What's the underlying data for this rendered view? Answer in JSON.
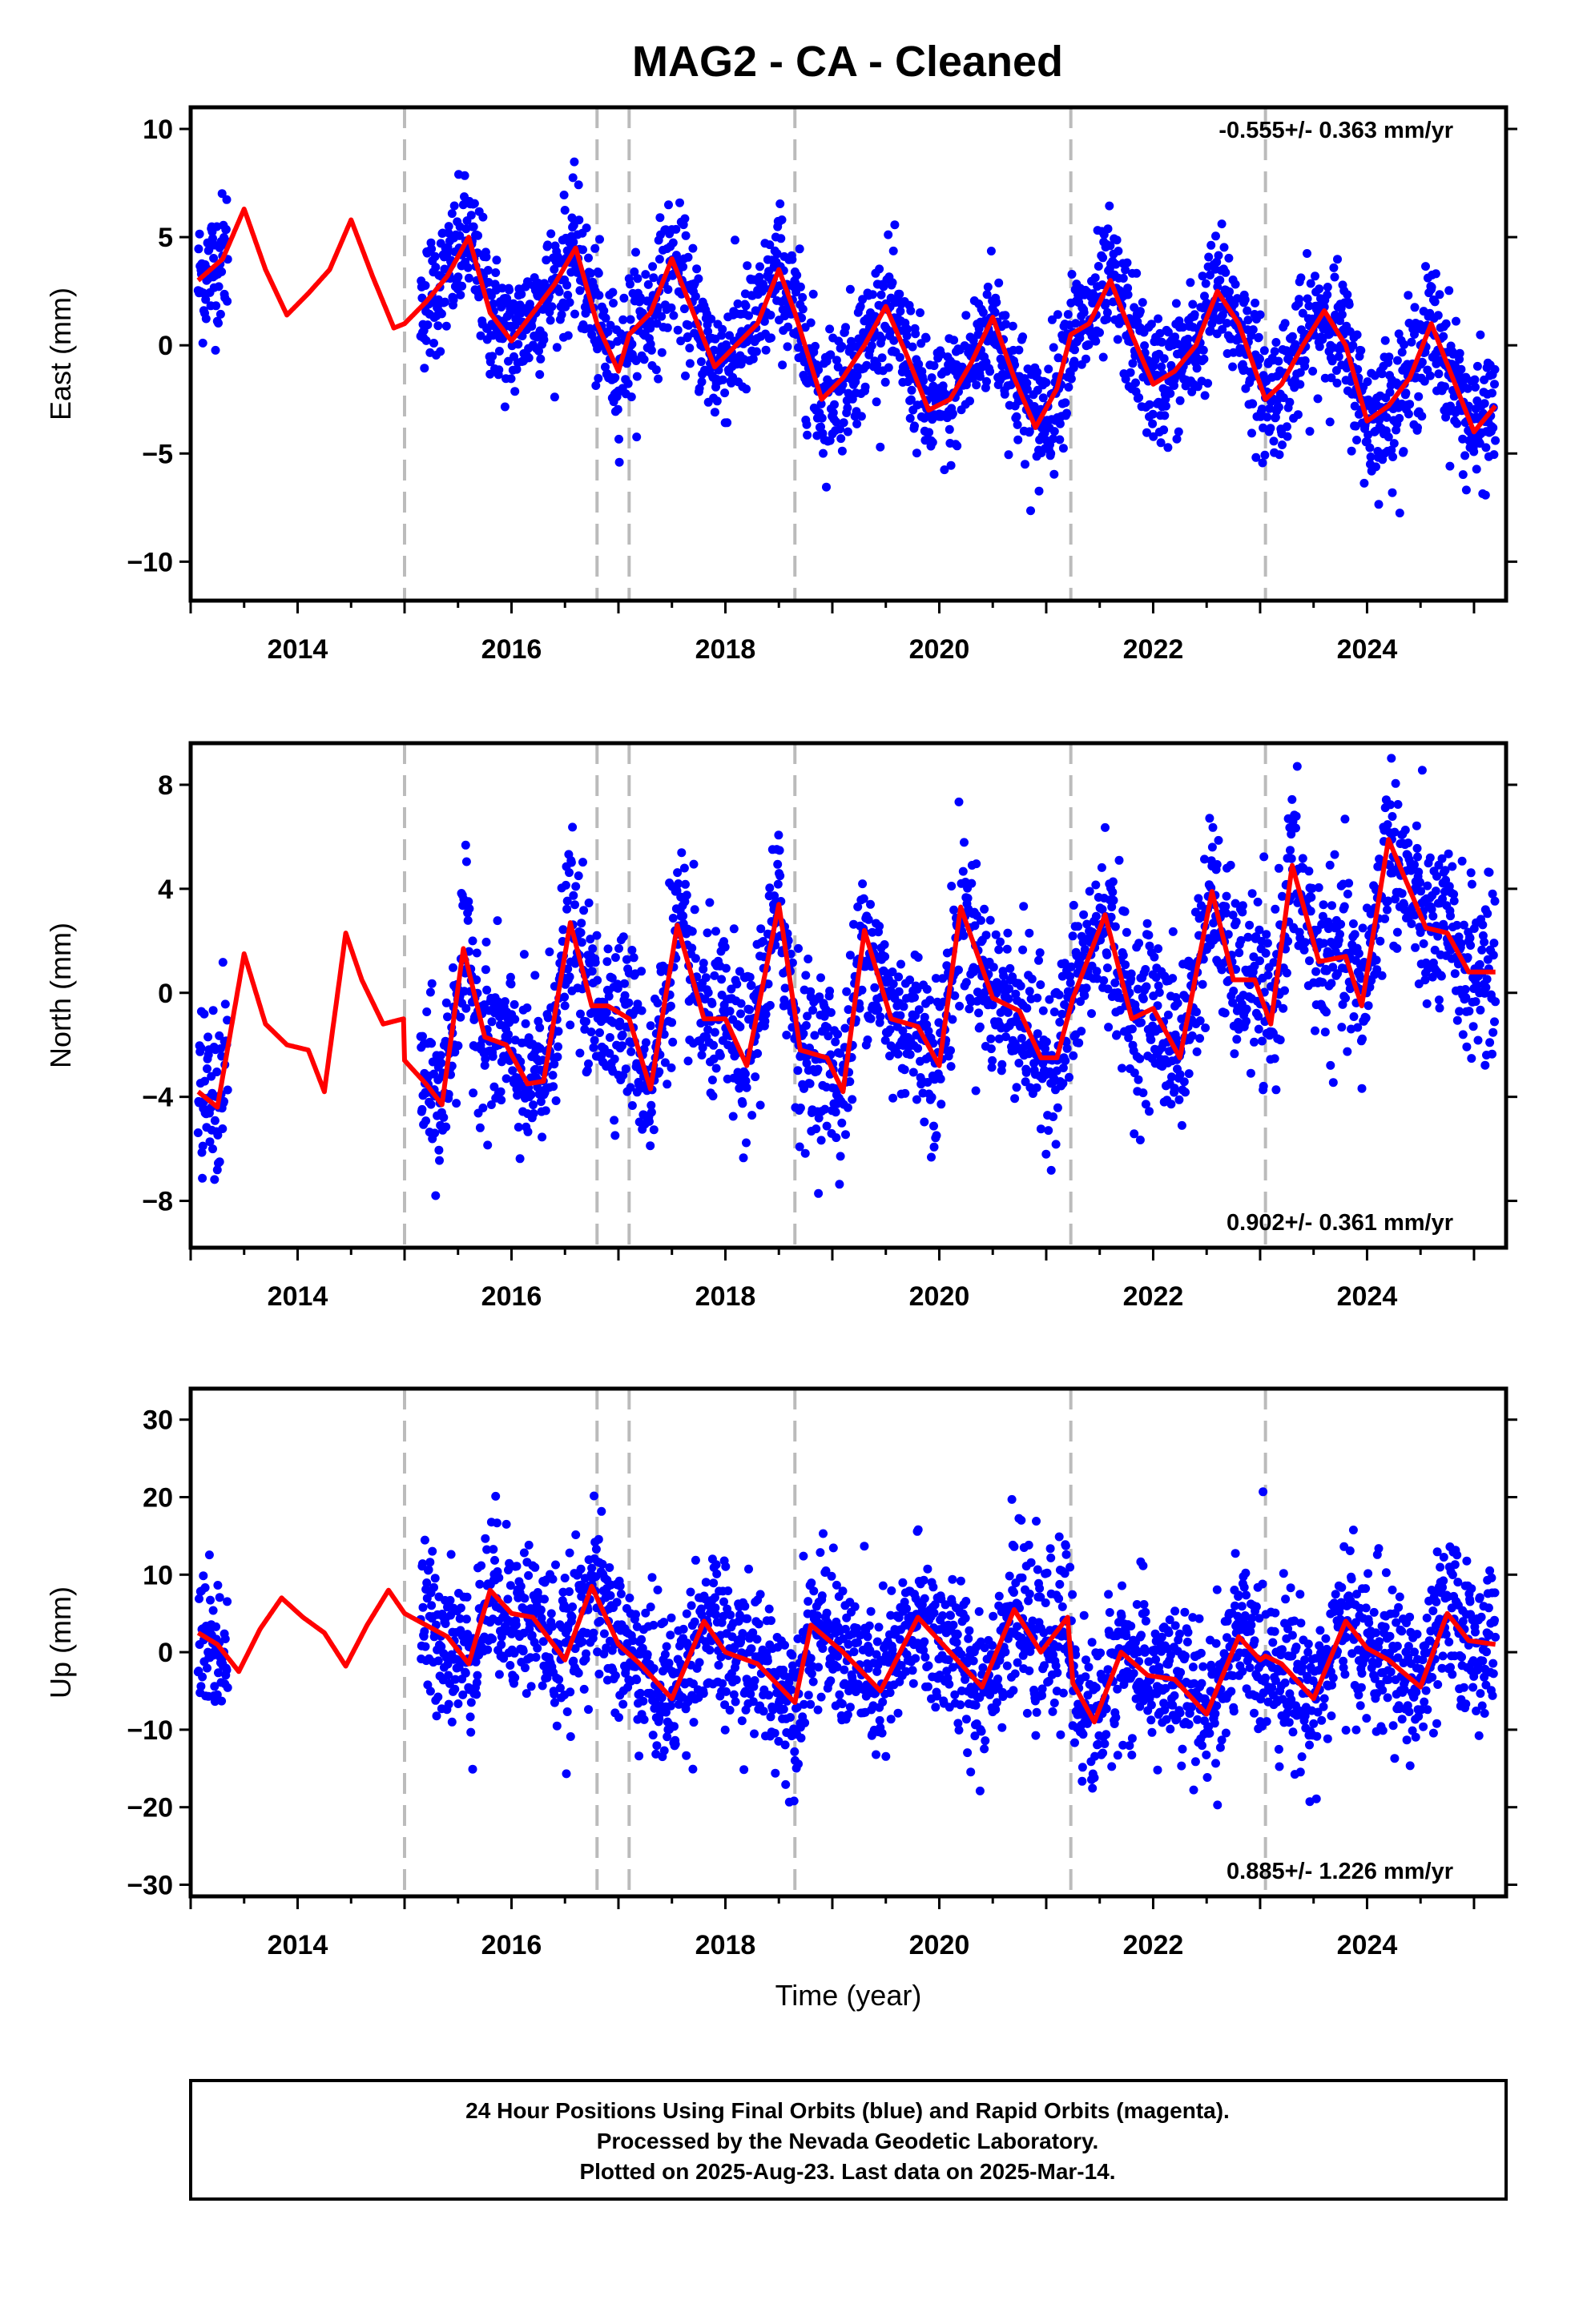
{
  "title": "MAG2  - CA - Cleaned",
  "footer": {
    "lines": [
      "24 Hour Positions Using Final Orbits (blue) and Rapid Orbits (magenta).",
      "Processed by the Nevada Geodetic Laboratory.",
      "Plotted on 2025-Aug-23. Last data on 2025-Mar-14."
    ]
  },
  "colors": {
    "final_orbits": "#0000ff",
    "model_fit": "#ff0000",
    "step_lines": "#bbbbbb"
  },
  "chart_data": [
    {
      "type": "scatter",
      "component": "east",
      "ylabel": "East (mm)",
      "xlabel": "",
      "xlim": [
        2013.0,
        2025.3
      ],
      "ylim": [
        -11.8,
        11
      ],
      "yticks": [
        10,
        5,
        0,
        -5,
        -10
      ],
      "ytick_labels": [
        "10",
        "5",
        "0",
        "−5",
        "−10"
      ],
      "xticks": [
        2014,
        2016,
        2018,
        2020,
        2022,
        2024
      ],
      "rate_label": "-0.555+/- 0.363 mm/yr",
      "rate_position": "top-right",
      "grid": false,
      "step_epochs": [
        2015.0,
        2016.8,
        2017.1,
        2018.65,
        2021.23,
        2023.05
      ],
      "data_span": [
        2013.07,
        2025.2
      ],
      "data_gap": [
        2013.35,
        2015.15
      ],
      "fit": {
        "x": [
          2013.07,
          2013.3,
          2013.5,
          2013.7,
          2013.9,
          2014.1,
          2014.3,
          2014.5,
          2014.7,
          2014.9,
          2015.0,
          2015.2,
          2015.4,
          2015.6,
          2015.8,
          2016.0,
          2016.2,
          2016.4,
          2016.6,
          2016.8,
          2017.0,
          2017.1,
          2017.3,
          2017.5,
          2017.7,
          2017.9,
          2018.1,
          2018.3,
          2018.5,
          2018.65,
          2018.9,
          2019.1,
          2019.3,
          2019.5,
          2019.7,
          2019.9,
          2020.1,
          2020.3,
          2020.5,
          2020.7,
          2020.9,
          2021.1,
          2021.23,
          2021.4,
          2021.6,
          2021.8,
          2022.0,
          2022.2,
          2022.4,
          2022.6,
          2022.8,
          2023.05,
          2023.2,
          2023.4,
          2023.6,
          2023.8,
          2024.0,
          2024.2,
          2024.4,
          2024.6,
          2024.8,
          2025.0,
          2025.2
        ],
        "y": [
          3.0,
          4.0,
          6.3,
          3.5,
          1.4,
          2.4,
          3.5,
          5.8,
          3.2,
          0.8,
          1.0,
          2.0,
          3.2,
          5.0,
          1.5,
          0.2,
          1.5,
          2.8,
          4.5,
          1.0,
          -1.2,
          0.5,
          1.5,
          4.0,
          1.5,
          -1.0,
          0.0,
          1.0,
          3.5,
          1.5,
          -2.5,
          -1.5,
          0.0,
          1.8,
          -0.5,
          -3.0,
          -2.5,
          -0.8,
          1.3,
          -1.5,
          -3.8,
          -2.0,
          0.5,
          1.0,
          3.0,
          0.5,
          -1.8,
          -1.2,
          0.0,
          2.5,
          1.0,
          -2.5,
          -1.8,
          0.0,
          1.6,
          0.0,
          -3.5,
          -2.8,
          -1.5,
          1.0,
          -1.5,
          -4.0,
          -2.8
        ]
      },
      "scatter_model": {
        "noise_sd_mm": 1.5
      }
    },
    {
      "type": "scatter",
      "component": "north",
      "ylabel": "North (mm)",
      "xlabel": "",
      "xlim": [
        2013.0,
        2025.3
      ],
      "ylim": [
        -9.8,
        9.6
      ],
      "yticks": [
        8,
        4,
        0,
        -4,
        -8
      ],
      "ytick_labels": [
        "8",
        "4",
        "0",
        "−4",
        "−8"
      ],
      "xticks": [
        2014,
        2016,
        2018,
        2020,
        2022,
        2024
      ],
      "rate_label": "0.902+/- 0.361 mm/yr",
      "rate_position": "bottom-right",
      "grid": false,
      "step_epochs": [
        2015.0,
        2016.8,
        2017.1,
        2018.65,
        2021.23,
        2023.05
      ],
      "data_span": [
        2013.07,
        2025.2
      ],
      "data_gap": [
        2013.35,
        2015.15
      ],
      "fit": {
        "x": [
          2013.07,
          2013.25,
          2013.5,
          2013.7,
          2013.9,
          2014.1,
          2014.25,
          2014.45,
          2014.6,
          2014.8,
          2014.99,
          2015.0,
          2015.2,
          2015.35,
          2015.55,
          2015.75,
          2015.95,
          2016.15,
          2016.3,
          2016.55,
          2016.75,
          2016.9,
          2017.1,
          2017.3,
          2017.55,
          2017.8,
          2018.0,
          2018.2,
          2018.5,
          2018.7,
          2018.95,
          2019.1,
          2019.3,
          2019.55,
          2019.8,
          2020.0,
          2020.2,
          2020.5,
          2020.75,
          2020.95,
          2021.1,
          2021.25,
          2021.55,
          2021.8,
          2022.0,
          2022.25,
          2022.55,
          2022.75,
          2022.95,
          2023.1,
          2023.3,
          2023.55,
          2023.8,
          2023.95,
          2024.2,
          2024.55,
          2024.75,
          2024.95,
          2025.2
        ],
        "y": [
          -3.8,
          -4.4,
          1.5,
          -1.2,
          -2.0,
          -2.2,
          -3.8,
          2.3,
          0.5,
          -1.2,
          -1.0,
          -2.6,
          -3.5,
          -4.3,
          1.7,
          -1.7,
          -2.0,
          -3.5,
          -3.4,
          2.7,
          -0.5,
          -0.5,
          -1.0,
          -3.7,
          2.6,
          -1.0,
          -1.0,
          -2.8,
          3.4,
          -2.2,
          -2.5,
          -3.8,
          2.4,
          -1.0,
          -1.3,
          -2.8,
          3.3,
          -0.2,
          -0.7,
          -2.5,
          -2.5,
          -0.2,
          3.0,
          -1.0,
          -0.6,
          -2.5,
          3.9,
          0.5,
          0.5,
          -1.2,
          4.9,
          1.2,
          1.4,
          -0.5,
          5.9,
          2.5,
          2.3,
          0.8,
          0.8
        ]
      },
      "scatter_model": {
        "noise_sd_mm": 1.6
      }
    },
    {
      "type": "scatter",
      "component": "up",
      "ylabel": "Up (mm)",
      "xlabel": "Time (year)",
      "xlim": [
        2013.0,
        2025.3
      ],
      "ylim": [
        -31.5,
        34
      ],
      "yticks": [
        30,
        20,
        10,
        0,
        -10,
        -20,
        -30
      ],
      "ytick_labels": [
        "30",
        "20",
        "10",
        "0",
        "−10",
        "−20",
        "−30"
      ],
      "xticks": [
        2014,
        2016,
        2018,
        2020,
        2022,
        2024
      ],
      "rate_label": "0.885+/- 1.226 mm/yr",
      "rate_position": "bottom-right",
      "grid": false,
      "step_epochs": [
        2015.0,
        2016.8,
        2017.1,
        2018.65,
        2021.23,
        2023.05
      ],
      "data_span": [
        2013.07,
        2025.2
      ],
      "data_gap": [
        2013.35,
        2015.15
      ],
      "fit": {
        "x": [
          2013.07,
          2013.25,
          2013.45,
          2013.65,
          2013.85,
          2014.05,
          2014.25,
          2014.45,
          2014.65,
          2014.85,
          2015.0,
          2015.2,
          2015.4,
          2015.6,
          2015.8,
          2016.0,
          2016.2,
          2016.5,
          2016.75,
          2016.9,
          2017.0,
          2017.2,
          2017.5,
          2017.8,
          2018.0,
          2018.3,
          2018.65,
          2018.8,
          2019.1,
          2019.45,
          2019.8,
          2020.1,
          2020.4,
          2020.7,
          2020.95,
          2021.2,
          2021.25,
          2021.45,
          2021.7,
          2021.95,
          2022.2,
          2022.5,
          2022.8,
          2023.0,
          2023.05,
          2023.2,
          2023.5,
          2023.8,
          2024.0,
          2024.2,
          2024.5,
          2024.75,
          2024.95,
          2025.2
        ],
        "y": [
          2.5,
          1.0,
          -2.5,
          3.0,
          7.0,
          4.5,
          2.5,
          -1.8,
          3.5,
          8.0,
          5.0,
          3.5,
          2.0,
          -1.5,
          8.0,
          5.0,
          4.5,
          -1.0,
          8.5,
          4.0,
          1.0,
          -1.5,
          -6.0,
          4.0,
          0.0,
          -1.5,
          -6.5,
          3.5,
          0.0,
          -5.0,
          4.5,
          0.0,
          -4.5,
          5.5,
          0.0,
          4.5,
          -4.0,
          -9.0,
          0.0,
          -3.0,
          -3.5,
          -8.0,
          2.0,
          -1.0,
          -0.5,
          -1.5,
          -6.0,
          4.0,
          0.5,
          -1.0,
          -4.5,
          5.0,
          1.5,
          1.0
        ]
      },
      "scatter_model": {
        "noise_sd_mm": 5.0
      }
    }
  ]
}
